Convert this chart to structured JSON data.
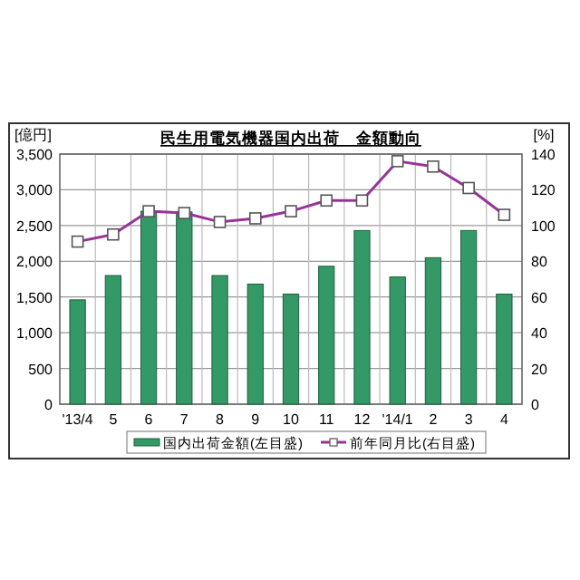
{
  "chart_data": {
    "type": "bar",
    "title": "民生用電気機器国内出荷　金額動向",
    "ylabel": "[億円]",
    "y2label": "[%]",
    "categories": [
      "'13/4",
      "5",
      "6",
      "7",
      "8",
      "9",
      "10",
      "11",
      "12",
      "'14/1",
      "2",
      "3",
      "4"
    ],
    "series": [
      {
        "name": "国内出荷金額(左目盛)",
        "color": "#339966",
        "values": [
          1460,
          1800,
          2700,
          2690,
          1800,
          1680,
          1540,
          1930,
          2430,
          1780,
          2050,
          2430,
          1540
        ]
      },
      {
        "name": "前年同月比(右目盛)",
        "type": "line",
        "axis": "y2",
        "color": "#993399",
        "marker": "square",
        "values": [
          91,
          95,
          108,
          107,
          102,
          104,
          108,
          114,
          114,
          136,
          133,
          121,
          106
        ]
      }
    ],
    "ylim": [
      0,
      3500
    ],
    "yticks": [
      {
        "value": 0,
        "label": "0"
      },
      {
        "value": 500,
        "label": "500"
      },
      {
        "value": 1000,
        "label": "1,000"
      },
      {
        "value": 1500,
        "label": "1,500"
      },
      {
        "value": 2000,
        "label": "2,000"
      },
      {
        "value": 2500,
        "label": "2,500"
      },
      {
        "value": 3000,
        "label": "3,000"
      },
      {
        "value": 3500,
        "label": "3,500"
      }
    ],
    "y2lim": [
      0,
      140
    ],
    "y2ticks": [
      0,
      20,
      40,
      60,
      80,
      100,
      120,
      140
    ],
    "grid": true,
    "legend": "bottom"
  }
}
